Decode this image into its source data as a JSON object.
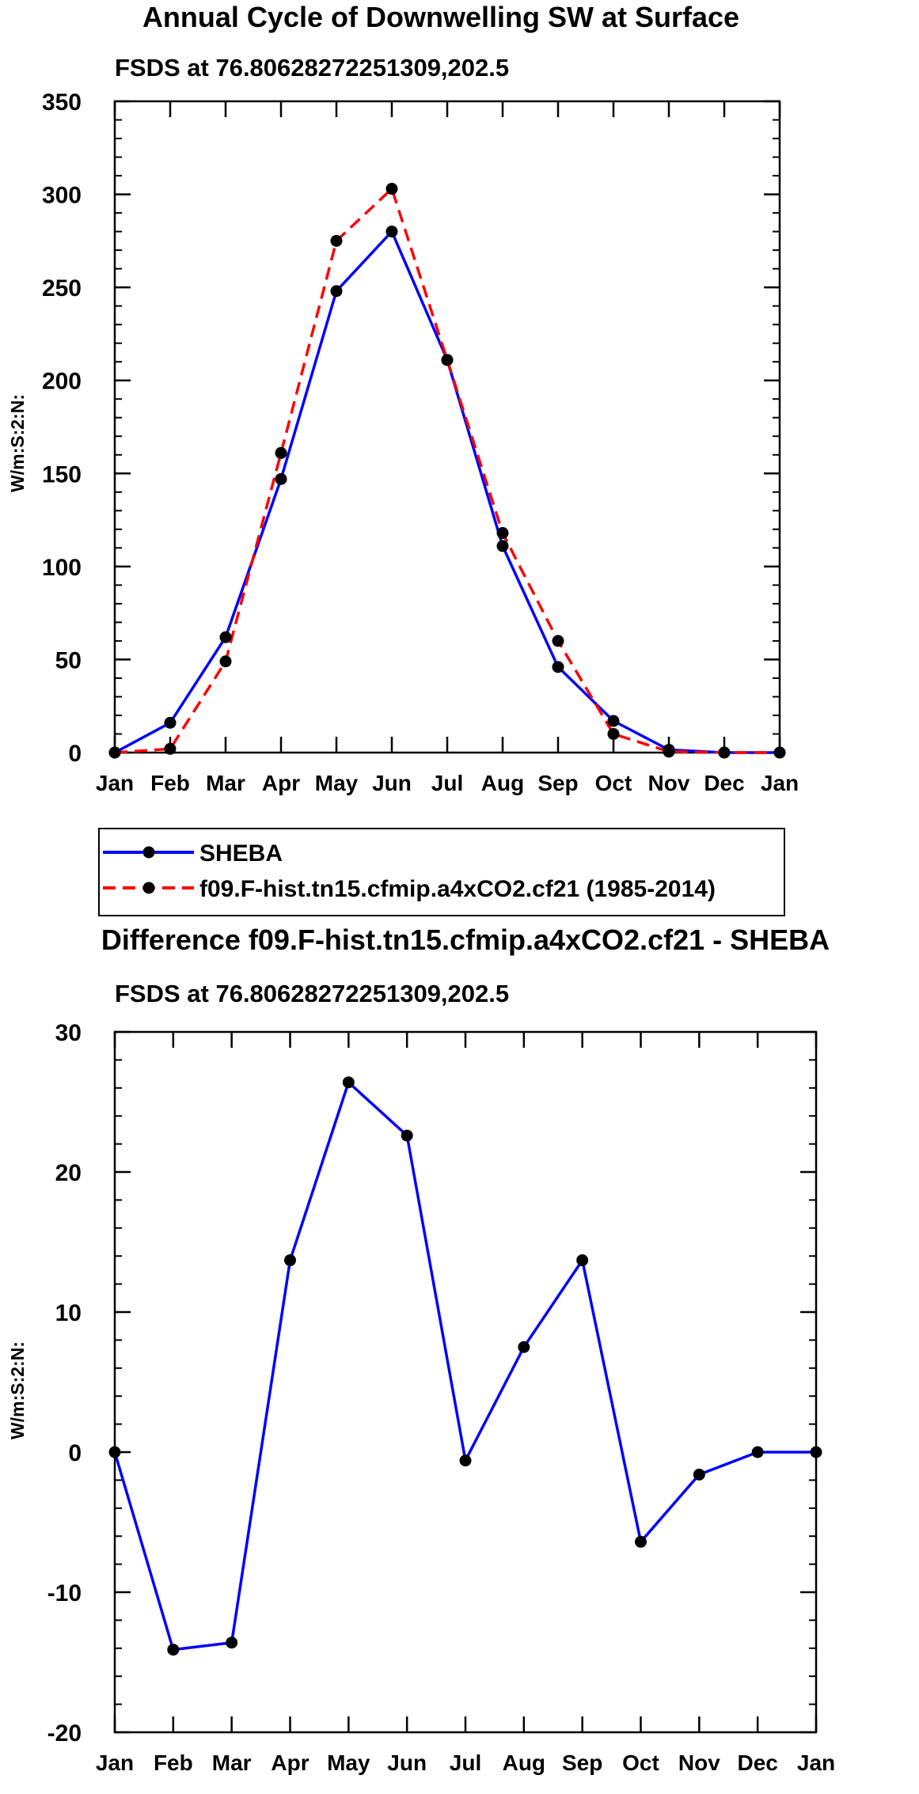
{
  "chart_data": [
    {
      "type": "line",
      "title": "Annual Cycle of Downwelling SW at Surface",
      "subtitle": "FSDS at 76.80628272251309,202.5",
      "xlabel": "",
      "ylabel": "W/m:S:2:N:",
      "ylim": [
        0,
        350
      ],
      "yticks": [
        0,
        50,
        100,
        150,
        200,
        250,
        300,
        350
      ],
      "categories": [
        "Jan",
        "Feb",
        "Mar",
        "Apr",
        "May",
        "Jun",
        "Jul",
        "Aug",
        "Sep",
        "Oct",
        "Nov",
        "Dec",
        "Jan"
      ],
      "grid": false,
      "legend_position": "bottom",
      "series": [
        {
          "name": "SHEBA",
          "color": "#0000ff",
          "dash": "solid",
          "values": [
            0,
            16,
            62,
            147,
            248,
            280,
            211,
            111,
            46,
            17,
            1.5,
            0,
            0
          ]
        },
        {
          "name": "f09.F-hist.tn15.cfmip.a4xCO2.cf21 (1985-2014)",
          "color": "#ff0000",
          "dash": "dashed",
          "values": [
            0,
            2,
            49,
            161,
            275,
            303,
            211,
            118,
            60,
            10,
            0.5,
            0,
            0
          ]
        }
      ]
    },
    {
      "type": "line",
      "title": "Difference f09.F-hist.tn15.cfmip.a4xCO2.cf21 - SHEBA",
      "subtitle": "FSDS at 76.80628272251309,202.5",
      "xlabel": "",
      "ylabel": "W/m:S:2:N:",
      "ylim": [
        -20,
        30
      ],
      "yticks": [
        -20,
        -10,
        0,
        10,
        20,
        30
      ],
      "categories": [
        "Jan",
        "Feb",
        "Mar",
        "Apr",
        "May",
        "Jun",
        "Jul",
        "Aug",
        "Sep",
        "Oct",
        "Nov",
        "Dec",
        "Jan"
      ],
      "grid": false,
      "series": [
        {
          "name": "Difference",
          "color": "#0000ff",
          "dash": "solid",
          "values": [
            0,
            -14.1,
            -13.6,
            13.7,
            26.4,
            22.6,
            -0.6,
            7.5,
            13.7,
            -6.4,
            -1.6,
            0,
            0
          ]
        }
      ]
    }
  ]
}
